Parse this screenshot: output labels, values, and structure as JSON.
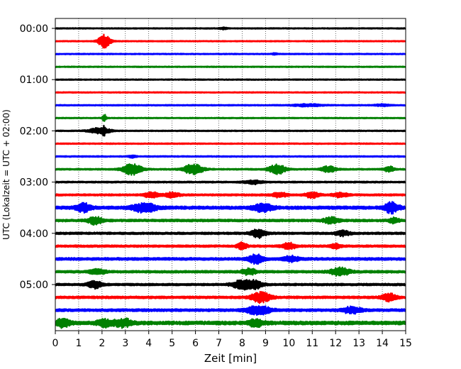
{
  "chart_data": {
    "type": "line",
    "subtype": "helicorder-seismogram",
    "xlabel": "Zeit  [min]",
    "ylabel": "UTC (Lokalzeit = UTC + 02:00)",
    "xlim": [
      0,
      15
    ],
    "x_ticks": [
      "0",
      "1",
      "2",
      "3",
      "4",
      "5",
      "6",
      "7",
      "8",
      "9",
      "10",
      "11",
      "12",
      "13",
      "14",
      "15"
    ],
    "y_ticks": [
      "00:00",
      "01:00",
      "02:00",
      "03:00",
      "04:00",
      "05:00"
    ],
    "grid": {
      "x_dotted_vertical": true,
      "y": false
    },
    "trace_color_cycle": [
      "#000000",
      "#ff0000",
      "#0000ff",
      "#008000"
    ],
    "trace_minutes_per_line": 15,
    "traces": [
      {
        "start": "00:00",
        "color": "#000000",
        "noise": 0.22,
        "events": [
          {
            "x": 7.2,
            "amp": 0.4,
            "width": 0.15
          }
        ]
      },
      {
        "start": "00:15",
        "color": "#ff0000",
        "noise": 0.22,
        "events": [
          {
            "x": 2.1,
            "amp": 2.8,
            "width": 0.25
          }
        ]
      },
      {
        "start": "00:30",
        "color": "#0000ff",
        "noise": 0.22,
        "events": [
          {
            "x": 9.4,
            "amp": 0.4,
            "width": 0.1
          }
        ]
      },
      {
        "start": "00:45",
        "color": "#008000",
        "noise": 0.22,
        "events": []
      },
      {
        "start": "01:00",
        "color": "#000000",
        "noise": 0.22,
        "events": []
      },
      {
        "start": "01:15",
        "color": "#ff0000",
        "noise": 0.22,
        "events": []
      },
      {
        "start": "01:30",
        "color": "#0000ff",
        "noise": 0.24,
        "events": [
          {
            "x": 10.8,
            "amp": 0.5,
            "width": 0.6
          },
          {
            "x": 14.0,
            "amp": 0.4,
            "width": 0.3
          }
        ]
      },
      {
        "start": "01:45",
        "color": "#008000",
        "noise": 0.22,
        "events": [
          {
            "x": 2.1,
            "amp": 1.8,
            "width": 0.08
          }
        ]
      },
      {
        "start": "02:00",
        "color": "#000000",
        "noise": 0.24,
        "events": [
          {
            "x": 1.9,
            "amp": 1.3,
            "width": 0.45
          },
          {
            "x": 2.1,
            "amp": 1.5,
            "width": 0.06
          }
        ]
      },
      {
        "start": "02:15",
        "color": "#ff0000",
        "noise": 0.24,
        "events": []
      },
      {
        "start": "02:30",
        "color": "#0000ff",
        "noise": 0.26,
        "events": [
          {
            "x": 3.3,
            "amp": 0.5,
            "width": 0.15
          }
        ]
      },
      {
        "start": "02:45",
        "color": "#008000",
        "noise": 0.3,
        "events": [
          {
            "x": 3.3,
            "amp": 2.4,
            "width": 0.4
          },
          {
            "x": 5.9,
            "amp": 2.3,
            "width": 0.4
          },
          {
            "x": 9.5,
            "amp": 2.2,
            "width": 0.35
          },
          {
            "x": 11.7,
            "amp": 1.3,
            "width": 0.3
          },
          {
            "x": 14.3,
            "amp": 1.2,
            "width": 0.2
          }
        ]
      },
      {
        "start": "03:00",
        "color": "#000000",
        "noise": 0.32,
        "events": [
          {
            "x": 8.5,
            "amp": 0.8,
            "width": 0.4
          }
        ]
      },
      {
        "start": "03:15",
        "color": "#ff0000",
        "noise": 0.4,
        "events": [
          {
            "x": 4.1,
            "amp": 1.2,
            "width": 0.3
          },
          {
            "x": 5.0,
            "amp": 1.0,
            "width": 0.3
          },
          {
            "x": 9.6,
            "amp": 1.0,
            "width": 0.3
          },
          {
            "x": 11.0,
            "amp": 1.2,
            "width": 0.3
          },
          {
            "x": 12.2,
            "amp": 1.0,
            "width": 0.3
          }
        ]
      },
      {
        "start": "03:30",
        "color": "#0000ff",
        "noise": 0.65,
        "events": [
          {
            "x": 1.2,
            "amp": 1.8,
            "width": 0.3
          },
          {
            "x": 3.8,
            "amp": 1.8,
            "width": 0.5
          },
          {
            "x": 8.9,
            "amp": 1.6,
            "width": 0.4
          },
          {
            "x": 14.4,
            "amp": 2.2,
            "width": 0.3
          }
        ]
      },
      {
        "start": "03:45",
        "color": "#008000",
        "noise": 0.5,
        "events": [
          {
            "x": 1.7,
            "amp": 1.6,
            "width": 0.3
          },
          {
            "x": 11.8,
            "amp": 1.3,
            "width": 0.3
          },
          {
            "x": 14.5,
            "amp": 1.2,
            "width": 0.2
          }
        ]
      },
      {
        "start": "04:00",
        "color": "#000000",
        "noise": 0.45,
        "events": [
          {
            "x": 8.7,
            "amp": 1.8,
            "width": 0.3
          },
          {
            "x": 12.3,
            "amp": 1.0,
            "width": 0.3
          }
        ]
      },
      {
        "start": "04:15",
        "color": "#ff0000",
        "noise": 0.45,
        "events": [
          {
            "x": 8.0,
            "amp": 1.5,
            "width": 0.2
          },
          {
            "x": 10.0,
            "amp": 1.3,
            "width": 0.3
          },
          {
            "x": 12.0,
            "amp": 1.0,
            "width": 0.2
          }
        ]
      },
      {
        "start": "04:30",
        "color": "#0000ff",
        "noise": 0.55,
        "events": [
          {
            "x": 8.6,
            "amp": 2.0,
            "width": 0.3
          },
          {
            "x": 10.1,
            "amp": 1.2,
            "width": 0.3
          }
        ]
      },
      {
        "start": "04:45",
        "color": "#008000",
        "noise": 0.5,
        "events": [
          {
            "x": 1.8,
            "amp": 1.2,
            "width": 0.3
          },
          {
            "x": 8.3,
            "amp": 1.3,
            "width": 0.3
          },
          {
            "x": 12.2,
            "amp": 1.6,
            "width": 0.4
          }
        ]
      },
      {
        "start": "05:00",
        "color": "#000000",
        "noise": 0.45,
        "events": [
          {
            "x": 1.7,
            "amp": 1.5,
            "width": 0.3
          },
          {
            "x": 8.0,
            "amp": 2.0,
            "width": 0.4
          },
          {
            "x": 8.6,
            "amp": 1.5,
            "width": 0.3
          }
        ]
      },
      {
        "start": "05:15",
        "color": "#ff0000",
        "noise": 0.5,
        "events": [
          {
            "x": 8.8,
            "amp": 2.2,
            "width": 0.4
          },
          {
            "x": 14.3,
            "amp": 1.6,
            "width": 0.3
          }
        ]
      },
      {
        "start": "05:30",
        "color": "#0000ff",
        "noise": 0.55,
        "events": [
          {
            "x": 8.7,
            "amp": 1.8,
            "width": 0.5
          },
          {
            "x": 12.7,
            "amp": 1.3,
            "width": 0.4
          }
        ]
      },
      {
        "start": "05:45",
        "color": "#008000",
        "noise": 0.75,
        "events": [
          {
            "x": 0.3,
            "amp": 1.6,
            "width": 0.3
          },
          {
            "x": 2.1,
            "amp": 1.4,
            "width": 0.3
          },
          {
            "x": 2.9,
            "amp": 1.6,
            "width": 0.4
          },
          {
            "x": 8.6,
            "amp": 1.5,
            "width": 0.3
          }
        ]
      }
    ]
  }
}
